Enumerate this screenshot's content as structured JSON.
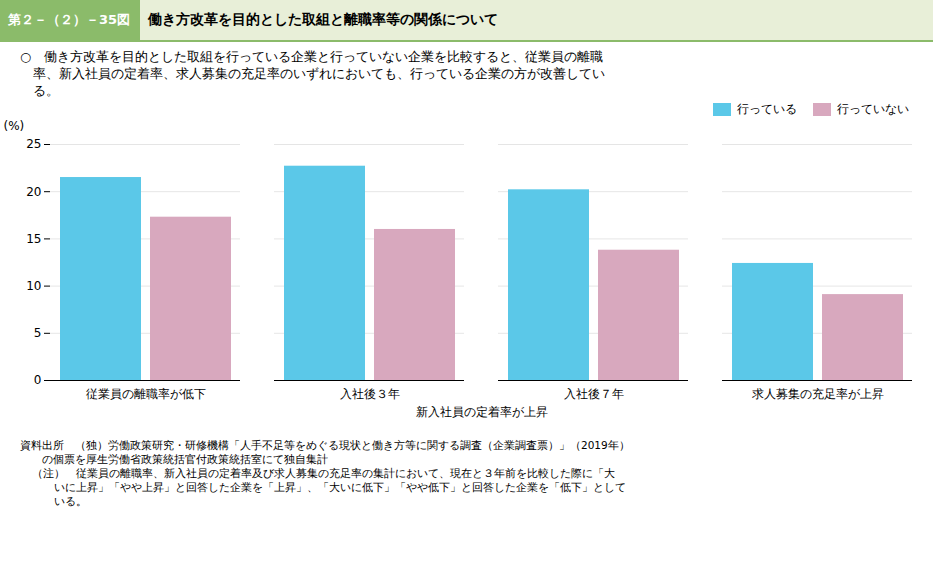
{
  "chart_data": {
    "type": "bar",
    "title": "働き方改革を目的とした取組と離職率等の関係について",
    "subtitle": [
      "○　働き方改革を目的とした取組を行っている企業と行っていない企業を比較すると、従業員の離職",
      "　率、新入社員の定着率、求人募集の充足率のいずれにおいても、行っている企業の方が改善してい",
      "　る。"
    ],
    "annotations": {
      "figure_number": "第２－（２）－35図",
      "source": [
        "資料出所　（独）労働政策研究・研修機構「人手不足等をめぐる現状と働き方等に関する調査（企業調査票）」（2019年）",
        "　　の個票を厚生労働省政策統括官付政策統括室にて独自集計"
      ],
      "note": [
        "（注）　従業員の離職率、新入社員の定着率及び求人募集の充足率の集計において、現在と３年前を比較した際に「大",
        "　　いに上昇」「やや上昇」と回答した企業を「上昇」、「大いに低下」「やや低下」と回答した企業を「低下」として",
        "　　いる。"
      ]
    },
    "y_label": "(%)",
    "categories": [
      "従業員の離職率が低下",
      "入社後３年",
      "入社後７年",
      "求人募集の充足率が上昇"
    ],
    "category_groups": [
      {
        "label": "新入社員の定着率が上昇",
        "categories": [
          "入社後３年",
          "入社後７年"
        ]
      }
    ],
    "series": [
      {
        "name": "行っている",
        "color": "#5BC8E8",
        "values": [
          21.5,
          22.7,
          20.2,
          12.4
        ]
      },
      {
        "name": "行っていない",
        "color": "#D8A8BE",
        "values": [
          17.3,
          16.0,
          13.8,
          9.1
        ]
      }
    ],
    "ylim": [
      0,
      25
    ],
    "yticks": [
      0,
      5,
      10,
      15,
      20,
      25
    ],
    "grid": true,
    "legend": "top-right"
  }
}
